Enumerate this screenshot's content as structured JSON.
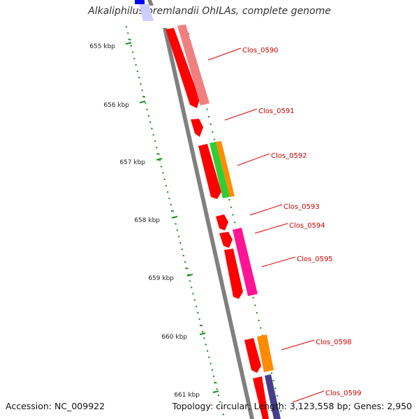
{
  "title": "Alkaliphilus oremlandii OhILAs, complete genome",
  "footer": {
    "accession": "Accession: NC_009922",
    "summary": "Topology: circular; Length: 3,123,558 bp; Genes: 2,950"
  },
  "colors": {
    "backbone": "#808080",
    "gc_ticks": "#228b22",
    "cds": "#ff0000",
    "blast_pink": "#f08080",
    "blast_green": "#32cd32",
    "blast_orange": "#ff8c00",
    "blast_magenta": "#ff1493",
    "blast_navy": "#483d8b",
    "label": "#cc0000"
  },
  "kbp_labels": [
    "655 kbp",
    "656 kbp",
    "657 kbp",
    "658 kbp",
    "659 kbp",
    "660 kbp",
    "661 kbp"
  ],
  "gene_labels": [
    "Clos_0590",
    "Clos_0591",
    "Clos_0592",
    "Clos_0593",
    "Clos_0594",
    "Clos_0595",
    "Clos_0598",
    "Clos_0599"
  ]
}
